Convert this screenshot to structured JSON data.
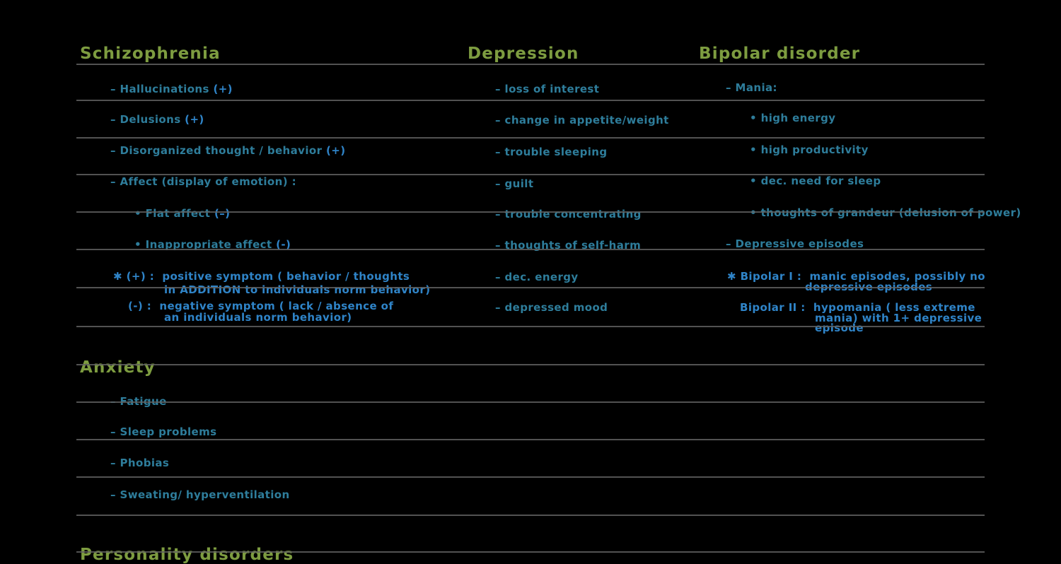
{
  "palette": {
    "background": "#000000",
    "ruled_line": "#606060",
    "header_green": "#7d9c40",
    "ink_teal": "#2e7d9b",
    "ink_blue": "#2f84c8"
  },
  "sections": {
    "schizophrenia": {
      "title": "Schizophrenia",
      "items": [
        {
          "text": "– Hallucinations",
          "suffix": " (+)"
        },
        {
          "text": "– Delusions",
          "suffix": " (+)"
        },
        {
          "text": "– Disorganized thought / behavior",
          "suffix": " (+)"
        },
        {
          "text": "– Affect (display of emotion) :",
          "suffix": ""
        },
        {
          "text": "• Flat affect",
          "suffix": " (–)"
        },
        {
          "text": "• Inappropriate affect",
          "suffix": " (-)"
        }
      ],
      "legend": {
        "positive_line1": "✱ (+) :  positive symptom ( behavior / thoughts",
        "positive_line2": "in ADDITION to individuals norm behavior)",
        "negative_line1": "(-) :  negative symptom ( lack / absence of",
        "negative_line2": "an individuals norm behavior)"
      }
    },
    "depression": {
      "title": "Depression",
      "items": [
        "– loss of interest",
        "– change in appetite/weight",
        "– trouble sleeping",
        "– guilt",
        "– trouble concentrating",
        "– thoughts of self-harm",
        "– dec. energy",
        "– depressed mood"
      ]
    },
    "bipolar": {
      "title": "Bipolar disorder",
      "items": [
        "– Mania:",
        "• high energy",
        "• high productivity",
        "• dec. need for sleep",
        "• thoughts of grandeur (delusion of power)",
        "– Depressive episodes"
      ],
      "type1_line1": "✱ Bipolar I :  manic episodes, possibly no",
      "type1_line2": "depressive episodes",
      "type2_line1": "Bipolar II :  hypomania ( less extreme",
      "type2_line2": "mania) with 1+ depressive",
      "type2_line3": "episode"
    },
    "anxiety": {
      "title": "Anxiety",
      "items": [
        "– Fatigue",
        "– Sleep problems",
        "– Phobias",
        "– Sweating/ hyperventilation"
      ]
    },
    "partial_section": {
      "title": "Personality disorders"
    }
  }
}
